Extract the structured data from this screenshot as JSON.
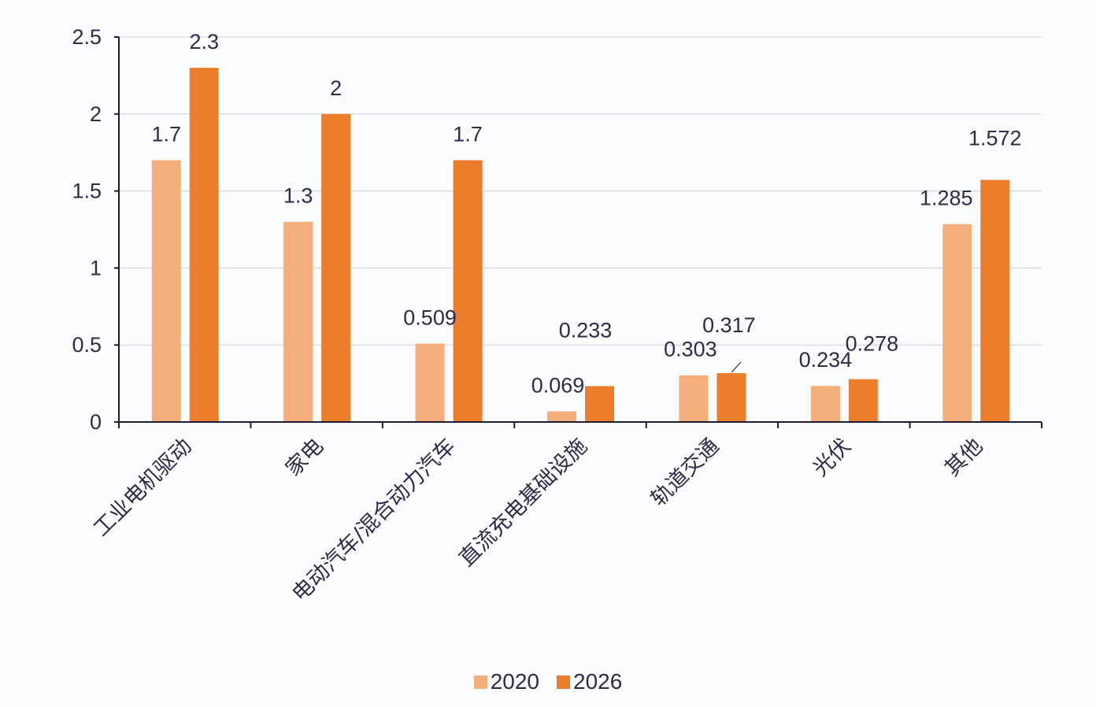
{
  "chart_data": {
    "type": "bar",
    "title": "",
    "xlabel": "",
    "ylabel": "",
    "ylim": [
      0,
      2.5
    ],
    "yticks": [
      0,
      0.5,
      1,
      1.5,
      2,
      2.5
    ],
    "ytick_labels": [
      "0",
      "0.5",
      "1",
      "1.5",
      "2",
      "2.5"
    ],
    "grid": true,
    "legend_position": "bottom",
    "categories": [
      "工业电机驱动",
      "家电",
      "电动汽车/混合动力汽车",
      "直流充电基础设施",
      "轨道交通",
      "光伏",
      "其他"
    ],
    "series": [
      {
        "name": "2020",
        "color": "#f4ae7c",
        "values": [
          1.7,
          1.3,
          0.509,
          0.069,
          0.303,
          0.234,
          1.285
        ],
        "labels": [
          "1.7",
          "1.3",
          "0.509",
          "0.069",
          "0.303",
          "0.234",
          "1.285"
        ]
      },
      {
        "name": "2026",
        "color": "#ec7d2a",
        "values": [
          2.3,
          2.0,
          1.7,
          0.233,
          0.317,
          0.278,
          1.572
        ],
        "labels": [
          "2.3",
          "2",
          "1.7",
          "0.233",
          "0.317",
          "0.278",
          "1.572"
        ]
      }
    ]
  },
  "legend": {
    "items": [
      {
        "label": "2020",
        "color": "#f4ae7c"
      },
      {
        "label": "2026",
        "color": "#ec7d2a"
      }
    ]
  }
}
